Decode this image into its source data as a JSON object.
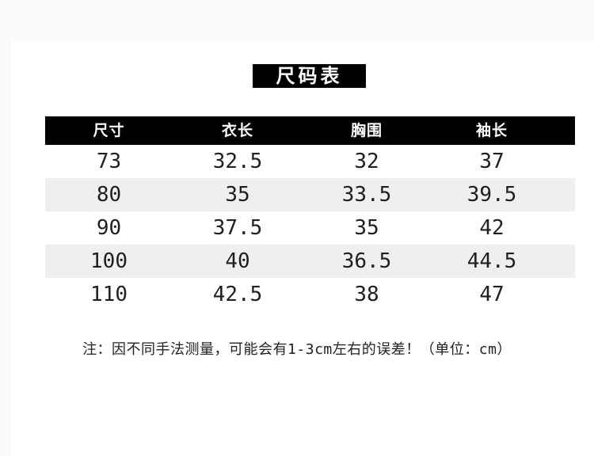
{
  "title": "尺码表",
  "table": {
    "columns": [
      "尺寸",
      "衣长",
      "胸围",
      "袖长"
    ],
    "rows": [
      [
        "73",
        "32.5",
        "32",
        "37"
      ],
      [
        "80",
        "35",
        "33.5",
        "39.5"
      ],
      [
        "90",
        "37.5",
        "35",
        "42"
      ],
      [
        "100",
        "40",
        "36.5",
        "44.5"
      ],
      [
        "110",
        "42.5",
        "38",
        "47"
      ]
    ]
  },
  "note": "注：因不同手法测量，可能会有1-3cm左右的误差！（单位：cm）",
  "unit": "cm",
  "colors": {
    "header_bg": "#000000",
    "header_text": "#ffffff",
    "alt_row_bg": "#efefef",
    "title_bg": "#000000",
    "body_text": "#1f1f1f"
  }
}
